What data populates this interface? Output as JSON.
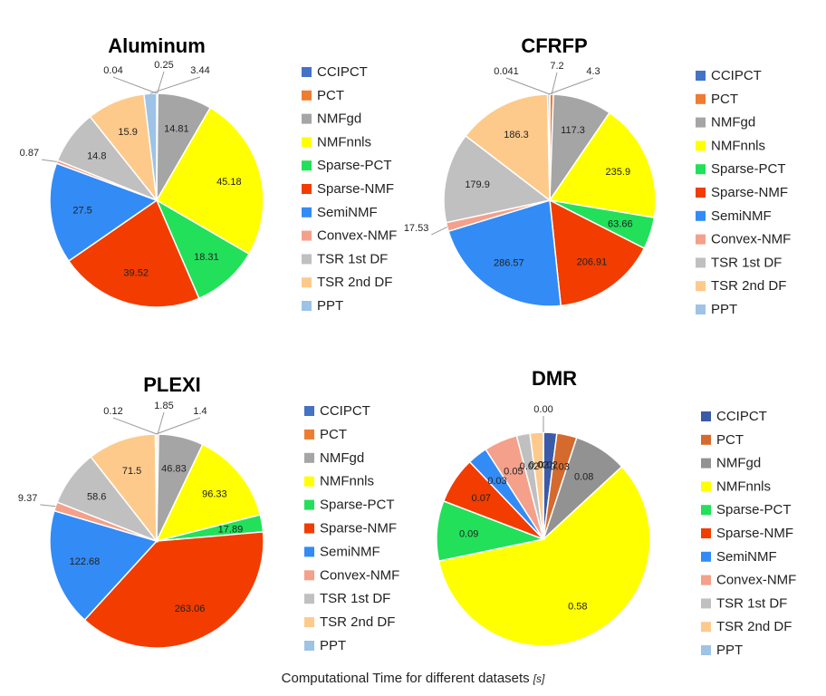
{
  "chart_data": [
    {
      "type": "pie",
      "title": "Aluminum",
      "categories": [
        "CCIPCT",
        "PCT",
        "NMFgd",
        "NMFnnls",
        "Sparse-PCT",
        "Sparse-NMF",
        "SemiNMF",
        "Convex-NMF",
        "TSR 1st DF",
        "TSR 2nd DF",
        "PPT"
      ],
      "values": [
        0.04,
        0.25,
        14.81,
        45.18,
        18.31,
        39.52,
        27.5,
        0.87,
        14.8,
        15.9,
        3.44
      ],
      "labels": [
        "0.04",
        "0.25",
        "14.81",
        "45.18",
        "18.31",
        "39.52",
        "27.5",
        "0.87",
        "14.8",
        "15.9",
        "3.44"
      ],
      "legend_position": "right"
    },
    {
      "type": "pie",
      "title": "CFRFP",
      "categories": [
        "CCIPCT",
        "PCT",
        "NMFgd",
        "NMFnnls",
        "Sparse-PCT",
        "Sparse-NMF",
        "SemiNMF",
        "Convex-NMF",
        "TSR 1st DF",
        "TSR 2nd DF",
        "PPT"
      ],
      "values": [
        0.041,
        7.2,
        117.3,
        235.9,
        63.66,
        206.91,
        286.57,
        17.53,
        179.9,
        186.3,
        4.3
      ],
      "labels": [
        "0.041",
        "7.2",
        "117.3",
        "235.9",
        "63.66",
        "206.91",
        "286.57",
        "17.53",
        "179.9",
        "186.3",
        "4.3"
      ],
      "legend_position": "right"
    },
    {
      "type": "pie",
      "title": "PLEXI",
      "categories": [
        "CCIPCT",
        "PCT",
        "NMFgd",
        "NMFnnls",
        "Sparse-PCT",
        "Sparse-NMF",
        "SemiNMF",
        "Convex-NMF",
        "TSR 1st DF",
        "TSR 2nd DF",
        "PPT"
      ],
      "values": [
        0.12,
        1.85,
        46.83,
        96.33,
        17.89,
        263.06,
        122.68,
        9.37,
        58.6,
        71.5,
        1.4
      ],
      "labels": [
        "0.12",
        "1.85",
        "46.83",
        "96.33",
        "17.89",
        "263.06",
        "122.68",
        "9.37",
        "58.6",
        "71.5",
        "1.4"
      ],
      "legend_position": "right"
    },
    {
      "type": "pie",
      "title": "DMR",
      "categories": [
        "CCIPCT",
        "PCT",
        "NMFgd",
        "NMFnnls",
        "Sparse-PCT",
        "Sparse-NMF",
        "SemiNMF",
        "Convex-NMF",
        "TSR 1st DF",
        "TSR 2nd DF",
        "PPT"
      ],
      "values": [
        0.02,
        0.03,
        0.08,
        0.58,
        0.09,
        0.07,
        0.03,
        0.05,
        0.02,
        0.02,
        0.0
      ],
      "labels": [
        "0.02",
        "0.03",
        "0.08",
        "0.58",
        "0.09",
        "0.07",
        "0.03",
        "0.05",
        "0.02",
        "0.02",
        "0.00"
      ],
      "legend_position": "right"
    }
  ],
  "colors": {
    "standard": [
      "#4472C4",
      "#ED7D31",
      "#A5A5A5",
      "#FFFF00",
      "#22E05A",
      "#F23C00",
      "#338BF5",
      "#F4A08B",
      "#C0C0C0",
      "#FDCA8C",
      "#9DC3E6"
    ],
    "dmr": [
      "#3B5BA9",
      "#D46A2E",
      "#929292",
      "#FFFF00",
      "#22E05A",
      "#F23C00",
      "#338BF5",
      "#F4A08B",
      "#C0C0C0",
      "#FDCA8C",
      "#9DC3E6"
    ]
  },
  "caption": {
    "text": "Computational Time for different datasets",
    "unit": "[s]"
  }
}
